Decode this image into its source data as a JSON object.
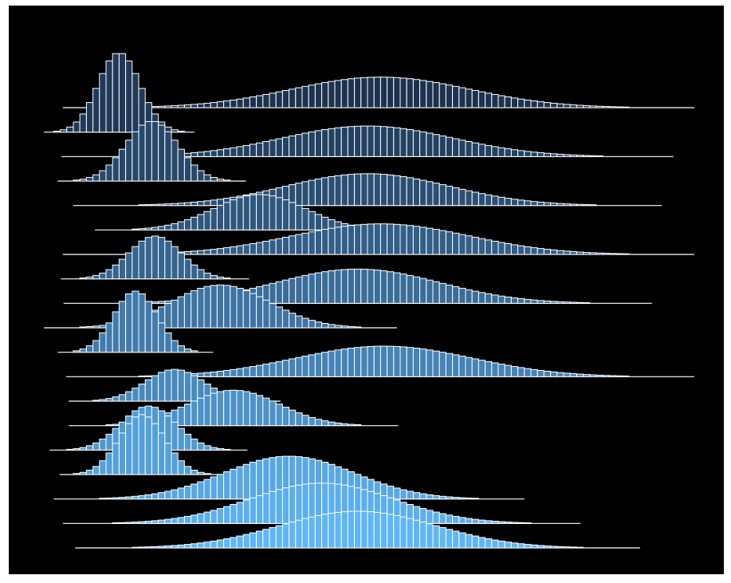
{
  "chart_data": {
    "type": "ridgeline-histogram",
    "title": "",
    "xlabel": "",
    "ylabel": "",
    "grid": false,
    "legend": "none",
    "background": "#000000",
    "bar_edge_color": "#ffffff",
    "color_top": "#1c324f",
    "color_bottom": "#5fb6f6",
    "ridge_spacing": 1.0,
    "xlim": [
      0,
      100
    ],
    "bin_width": 1.0,
    "series": [
      {
        "mean": 52.0,
        "sd": 13.5,
        "peak": 1.25
      },
      {
        "mean": 12.0,
        "sd": 3.2,
        "peak": 3.25
      },
      {
        "mean": 50.0,
        "sd": 13.0,
        "peak": 1.25
      },
      {
        "mean": 17.0,
        "sd": 4.0,
        "peak": 2.45
      },
      {
        "mean": 50.0,
        "sd": 12.5,
        "peak": 1.3
      },
      {
        "mean": 33.5,
        "sd": 7.0,
        "peak": 1.45
      },
      {
        "mean": 52.0,
        "sd": 13.5,
        "peak": 1.25
      },
      {
        "mean": 17.5,
        "sd": 4.0,
        "peak": 1.75
      },
      {
        "mean": 48.5,
        "sd": 12.5,
        "peak": 1.4
      },
      {
        "mean": 27.5,
        "sd": 7.5,
        "peak": 1.75
      },
      {
        "mean": 14.5,
        "sd": 3.3,
        "peak": 2.5
      },
      {
        "mean": 52.5,
        "sd": 13.5,
        "peak": 1.25
      },
      {
        "mean": 20.5,
        "sd": 4.5,
        "peak": 1.3
      },
      {
        "mean": 29.5,
        "sd": 7.0,
        "peak": 1.45
      },
      {
        "mean": 16.5,
        "sd": 4.2,
        "peak": 1.8
      },
      {
        "mean": 15.5,
        "sd": 3.5,
        "peak": 2.45
      },
      {
        "mean": 38.0,
        "sd": 10.0,
        "peak": 1.75
      },
      {
        "mean": 43.0,
        "sd": 11.0,
        "peak": 1.65
      },
      {
        "mean": 48.5,
        "sd": 12.0,
        "peak": 1.5
      }
    ]
  }
}
